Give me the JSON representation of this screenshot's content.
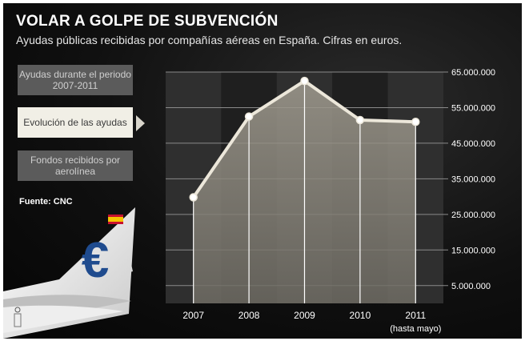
{
  "title": "VOLAR A GOLPE DE SUBVENCIÓN",
  "subtitle": "Ayudas públicas recibidas por compañías aéreas en España. Cifras en  euros.",
  "menu": {
    "items": [
      {
        "label": "Ayudas durante el periodo 2007-2011"
      },
      {
        "label": "Evolución de las ayudas"
      },
      {
        "label": "Fondos recibidos por aerolínea"
      }
    ]
  },
  "source": "Fuente: CNC",
  "colors": {
    "background": "#0b0b0b",
    "line": "#ece7da",
    "area": "#8f8b80",
    "active_button": "#f1efe6"
  },
  "chart_data": {
    "type": "area",
    "title": "Evolución de las ayudas",
    "categories": [
      "2007",
      "2008",
      "2009",
      "2010",
      "2011"
    ],
    "category_note": "(hasta mayo)",
    "values": [
      29800000,
      52500000,
      62500000,
      51500000,
      51000000
    ],
    "yticks": [
      5000000,
      15000000,
      25000000,
      35000000,
      45000000,
      55000000,
      65000000
    ],
    "ytick_labels": [
      "5.000.000",
      "15.000.000",
      "25.000.000",
      "35.000.000",
      "45.000.000",
      "55.000.000",
      "65.000.000"
    ],
    "ylim": [
      0,
      65000000
    ],
    "grid": true
  }
}
